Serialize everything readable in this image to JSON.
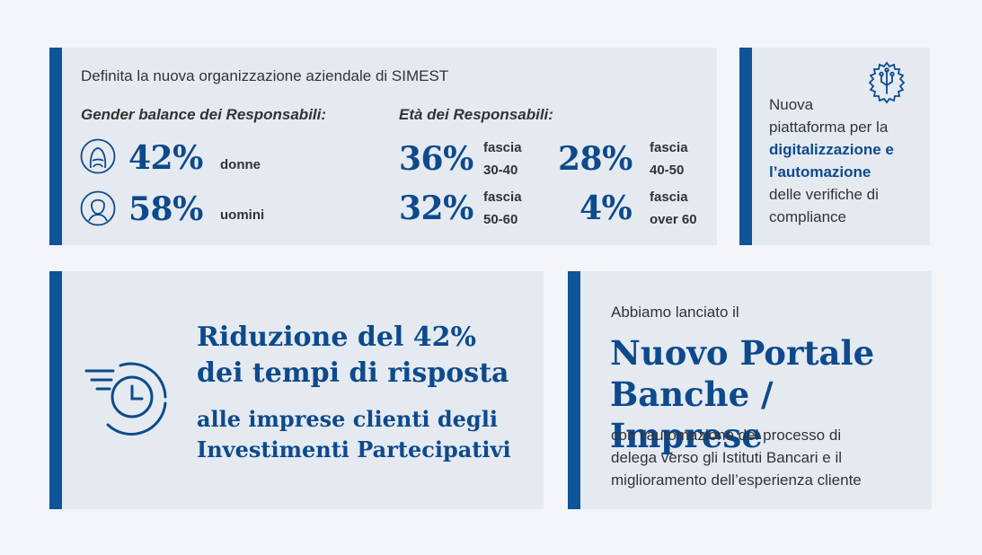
{
  "org": {
    "intro": "Definita la nuova organizzazione aziendale di SIMEST",
    "gender_heading": "Gender balance dei Responsabili:",
    "age_heading": "Età dei Responsabili:",
    "gender": [
      {
        "value": "42%",
        "label": "donne",
        "icon": "woman-icon"
      },
      {
        "value": "58%",
        "label": "uomini",
        "icon": "man-icon"
      }
    ],
    "age": [
      {
        "value": "36%",
        "label_line1": "fascia",
        "label_line2": "30-40"
      },
      {
        "value": "28%",
        "label_line1": "fascia",
        "label_line2": "40-50"
      },
      {
        "value": "32%",
        "label_line1": "fascia",
        "label_line2": "50-60"
      },
      {
        "value": "4%",
        "label_line1": "fascia",
        "label_line2": "over 60"
      }
    ]
  },
  "platform": {
    "icon": "gear-circuit-icon",
    "line1": "Nuova",
    "line2": "piattaforma per la",
    "highlight1": "digitalizzazione e",
    "highlight2": "l’automazione",
    "line3": "delle verifiche di",
    "line4": "compliance"
  },
  "reduction": {
    "icon": "fast-clock-icon",
    "title_line1": "Riduzione del 42%",
    "title_line2": "dei tempi di risposta",
    "sub_line1": "alle imprese clienti degli",
    "sub_line2": "Investimenti Partecipativi"
  },
  "portal": {
    "intro": "Abbiamo lanciato il",
    "title_line1": "Nuovo Portale",
    "title_line2": "Banche / Imprese",
    "desc_line1": "con l’automazione del processo di",
    "desc_line2": "delega verso gli Istituti Bancari e il",
    "desc_line3": "miglioramento dell’esperienza cliente"
  },
  "colors": {
    "accent": "#0d5499",
    "card_bg": "#e5eaf1",
    "page_bg": "#f3f5f8",
    "title": "#0d4a8c"
  }
}
